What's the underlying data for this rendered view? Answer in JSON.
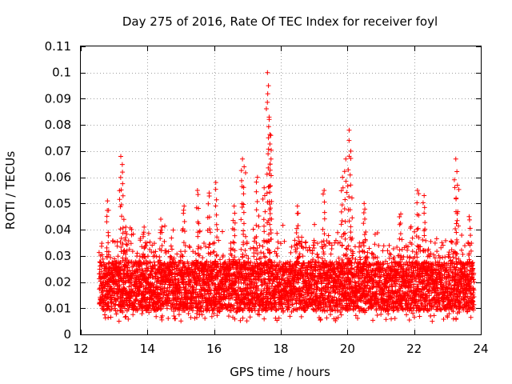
{
  "chart_data": {
    "type": "scatter",
    "title": "Day 275 of 2016, Rate Of TEC Index for receiver foyl",
    "xlabel": "GPS time / hours",
    "ylabel": "ROTI / TECUs",
    "xlim": [
      12,
      24
    ],
    "ylim": [
      0,
      0.11
    ],
    "xticks": [
      12,
      14,
      16,
      18,
      20,
      22,
      24
    ],
    "yticks": [
      0,
      0.01,
      0.02,
      0.03,
      0.04,
      0.05,
      0.06,
      0.07,
      0.08,
      0.09,
      0.1,
      0.11
    ],
    "x_tick_labels": [
      "12",
      "14",
      "16",
      "18",
      "20",
      "22",
      "24"
    ],
    "y_tick_labels": [
      "0",
      "0.01",
      "0.02",
      "0.03",
      "0.04",
      "0.05",
      "0.06",
      "0.07",
      "0.08",
      "0.09",
      "0.1",
      "0.11"
    ],
    "grid": true,
    "marker": "+",
    "color": "#ff0000",
    "series": [
      {
        "name": "ROTI",
        "x_range": [
          12.55,
          23.8
        ],
        "baseline_band": [
          0.005,
          0.03
        ],
        "peaks": [
          {
            "x": 12.8,
            "y": 0.051
          },
          {
            "x": 13.2,
            "y": 0.068
          },
          {
            "x": 13.25,
            "y": 0.062
          },
          {
            "x": 13.35,
            "y": 0.041
          },
          {
            "x": 13.9,
            "y": 0.041
          },
          {
            "x": 14.4,
            "y": 0.044
          },
          {
            "x": 15.1,
            "y": 0.049
          },
          {
            "x": 15.5,
            "y": 0.055
          },
          {
            "x": 15.85,
            "y": 0.054
          },
          {
            "x": 16.05,
            "y": 0.058
          },
          {
            "x": 16.6,
            "y": 0.049
          },
          {
            "x": 16.85,
            "y": 0.067
          },
          {
            "x": 16.9,
            "y": 0.064
          },
          {
            "x": 17.3,
            "y": 0.06
          },
          {
            "x": 17.5,
            "y": 0.056
          },
          {
            "x": 17.6,
            "y": 0.1
          },
          {
            "x": 17.63,
            "y": 0.095
          },
          {
            "x": 17.65,
            "y": 0.083
          },
          {
            "x": 17.7,
            "y": 0.076
          },
          {
            "x": 17.68,
            "y": 0.065
          },
          {
            "x": 18.5,
            "y": 0.049
          },
          {
            "x": 19.3,
            "y": 0.055
          },
          {
            "x": 19.85,
            "y": 0.06
          },
          {
            "x": 19.95,
            "y": 0.067
          },
          {
            "x": 20.05,
            "y": 0.078
          },
          {
            "x": 20.1,
            "y": 0.07
          },
          {
            "x": 20.5,
            "y": 0.05
          },
          {
            "x": 21.6,
            "y": 0.046
          },
          {
            "x": 22.1,
            "y": 0.055
          },
          {
            "x": 22.3,
            "y": 0.053
          },
          {
            "x": 23.25,
            "y": 0.067
          },
          {
            "x": 23.3,
            "y": 0.057
          },
          {
            "x": 23.65,
            "y": 0.045
          }
        ]
      }
    ]
  }
}
